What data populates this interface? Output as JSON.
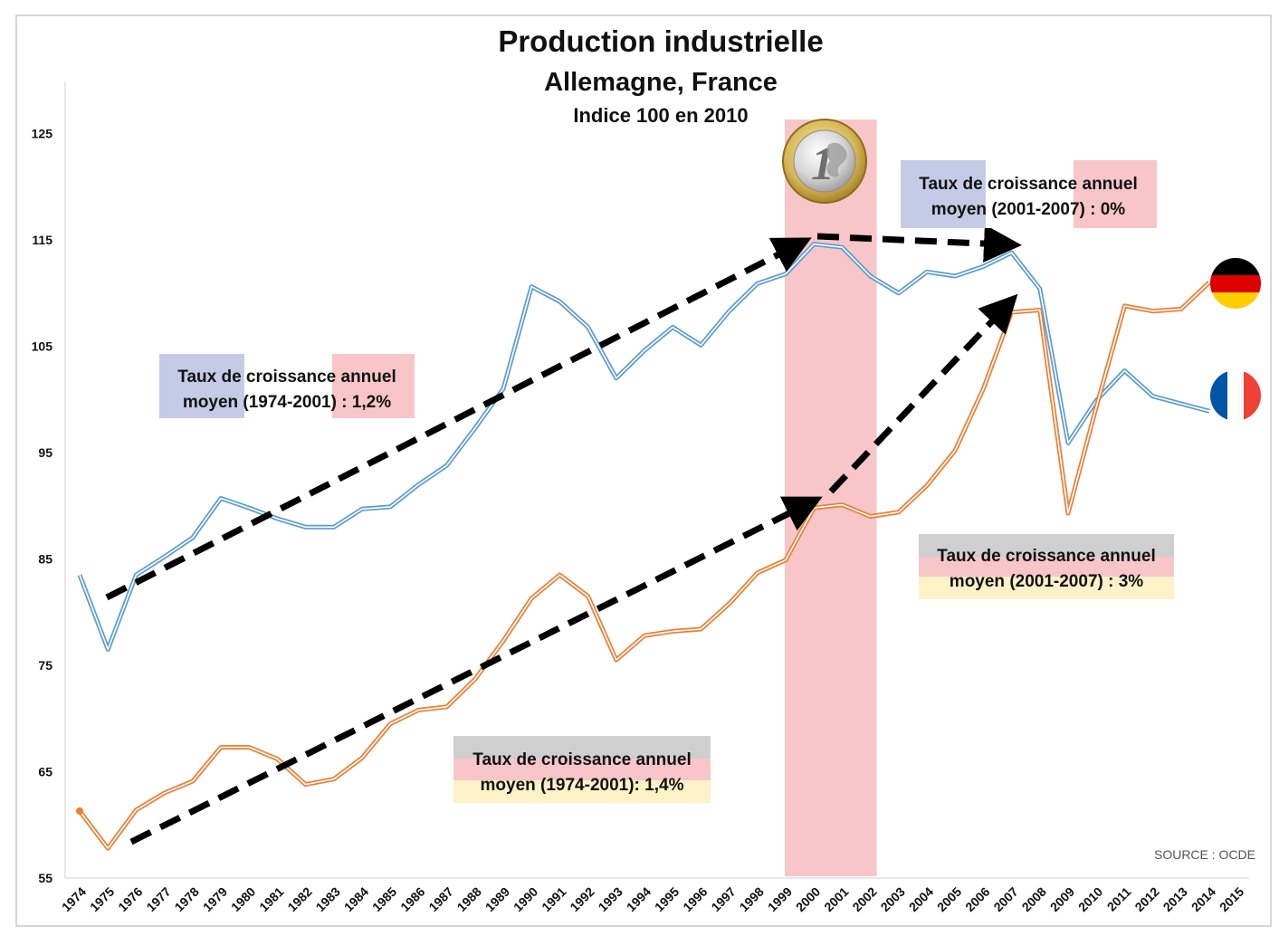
{
  "colors": {
    "germany": "#5b9bd5",
    "france": "#ed7d31",
    "euro_band": "#f8c6c8",
    "arrow": "#000000",
    "box_blue": "#c5cbe6",
    "box_red": "#f8c6c8",
    "box_gray": "#cfcfcf",
    "box_yellow": "#fdf1c7"
  },
  "chart_data": {
    "type": "line",
    "title": "Production industrielle",
    "subtitle": "Allemagne, France",
    "subtitle2": "Indice 100 en 2010",
    "source": "SOURCE : OCDE",
    "xlabel": "",
    "ylabel": "",
    "ylim": [
      55,
      127
    ],
    "y_ticks": [
      "55",
      "65",
      "75",
      "85",
      "95",
      "105",
      "115",
      "125"
    ],
    "x": [
      "1974",
      "1975",
      "1976",
      "1977",
      "1978",
      "1979",
      "1980",
      "1981",
      "1982",
      "1983",
      "1984",
      "1985",
      "1986",
      "1987",
      "1988",
      "1989",
      "1990",
      "1991",
      "1992",
      "1993",
      "1994",
      "1995",
      "1996",
      "1997",
      "1998",
      "1999",
      "2000",
      "2001",
      "2002",
      "2003",
      "2004",
      "2005",
      "2006",
      "2007",
      "2008",
      "2009",
      "2010",
      "2011",
      "2012",
      "2013",
      "2014",
      "2015"
    ],
    "series": [
      {
        "id": "germany",
        "values": [
          83.5,
          76.5,
          83.5,
          85.2,
          87.0,
          90.7,
          89.8,
          88.8,
          88.0,
          88.0,
          89.7,
          89.9,
          92.0,
          93.8,
          97.3,
          101.0,
          110.6,
          109.2,
          106.8,
          102.0,
          104.6,
          106.8,
          105.1,
          108.3,
          110.9,
          111.8,
          114.6,
          114.3,
          111.6,
          110.0,
          112.0,
          111.6,
          112.5,
          113.8,
          110.4,
          95.9,
          99.9,
          102.7,
          100.3,
          99.6,
          98.9,
          null
        ]
      },
      {
        "id": "france",
        "values": [
          61.3,
          57.8,
          61.4,
          63.0,
          64.1,
          67.3,
          67.3,
          66.2,
          63.8,
          64.3,
          66.3,
          69.5,
          70.8,
          71.1,
          73.7,
          77.3,
          81.3,
          83.5,
          81.5,
          75.5,
          77.8,
          78.2,
          78.4,
          80.8,
          83.7,
          84.9,
          89.8,
          90.1,
          89.0,
          89.4,
          91.9,
          95.2,
          101.0,
          108.2,
          108.4,
          89.3,
          99.3,
          108.8,
          108.3,
          108.5,
          111.0,
          null
        ]
      }
    ],
    "highlight_band": [
      "1999",
      "2002"
    ],
    "annotations": [
      {
        "line1": "Taux de croissance annuel",
        "line2": "moyen (1974-2001) : 1,2%"
      },
      {
        "line1": "Taux de croissance annuel",
        "line2": "moyen (2001-2007) : 0%"
      },
      {
        "line1": "Taux de croissance annuel",
        "line2": "moyen (1974-2001): 1,4%"
      },
      {
        "line1": "Taux de croissance annuel",
        "line2": "moyen (2001-2007) : 3%"
      }
    ]
  }
}
